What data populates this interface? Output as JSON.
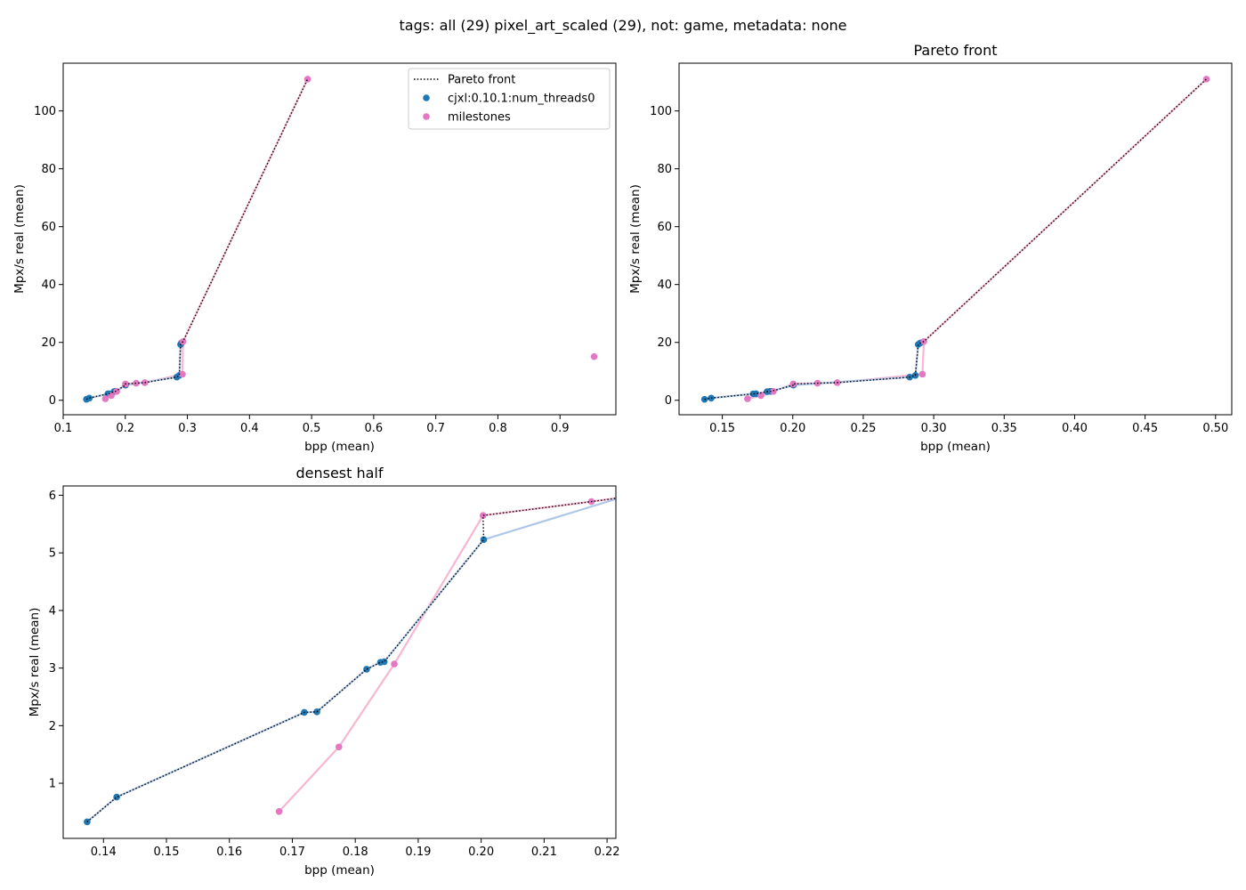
{
  "figure": {
    "suptitle": "tags: all (29) pixel_art_scaled (29), not: game, metadata: none"
  },
  "chart_data": [
    {
      "id": "overview",
      "type": "scatter",
      "title": "",
      "xlabel": "bpp (mean)",
      "ylabel": "Mpx/s real (mean)",
      "xlim": [
        0.1,
        0.99
      ],
      "ylim": [
        -5,
        116.5
      ],
      "xticks": [
        0.1,
        0.2,
        0.3,
        0.4,
        0.5,
        0.6,
        0.7,
        0.8,
        0.9
      ],
      "xtick_labels": [
        "0.1",
        "0.2",
        "0.3",
        "0.4",
        "0.5",
        "0.6",
        "0.7",
        "0.8",
        "0.9"
      ],
      "yticks": [
        0,
        20,
        40,
        60,
        80,
        100
      ],
      "ytick_labels": [
        "0",
        "20",
        "40",
        "60",
        "80",
        "100"
      ],
      "show_legend": true,
      "legend_position": "upper right",
      "show_points": [
        "cjxl",
        "milestones"
      ]
    },
    {
      "id": "pareto",
      "type": "scatter",
      "title": "Pareto front",
      "xlabel": "bpp (mean)",
      "ylabel": "Mpx/s real (mean)",
      "xlim": [
        0.1193,
        0.5115
      ],
      "ylim": [
        -5,
        116.5
      ],
      "xticks": [
        0.15,
        0.2,
        0.25,
        0.3,
        0.35,
        0.4,
        0.45,
        0.5
      ],
      "xtick_labels": [
        "0.15",
        "0.20",
        "0.25",
        "0.30",
        "0.35",
        "0.40",
        "0.45",
        "0.50"
      ],
      "yticks": [
        0,
        20,
        40,
        60,
        80,
        100
      ],
      "ytick_labels": [
        "0",
        "20",
        "40",
        "60",
        "80",
        "100"
      ],
      "show_legend": false,
      "show_points": [
        "cjxl",
        "milestones_pareto"
      ]
    },
    {
      "id": "densest",
      "type": "scatter",
      "title": "densest half",
      "xlabel": "bpp (mean)",
      "ylabel": "Mpx/s real (mean)",
      "xlim": [
        0.1336,
        0.2214
      ],
      "ylim": [
        0.043,
        6.162
      ],
      "xticks": [
        0.14,
        0.15,
        0.16,
        0.17,
        0.18,
        0.19,
        0.2,
        0.21,
        0.22
      ],
      "xtick_labels": [
        "0.14",
        "0.15",
        "0.16",
        "0.17",
        "0.18",
        "0.19",
        "0.20",
        "0.21",
        "0.22"
      ],
      "yticks": [
        1,
        2,
        3,
        4,
        5,
        6
      ],
      "ytick_labels": [
        "1",
        "2",
        "3",
        "4",
        "5",
        "6"
      ],
      "show_legend": false,
      "show_points": [
        "cjxl",
        "milestones_dense"
      ]
    }
  ],
  "series": {
    "cjxl": {
      "name": "cjxl:0.10.1:num_threads0",
      "color": "#1f77b4",
      "line_color": "#aec7e8",
      "points": [
        [
          0.1374,
          0.33
        ],
        [
          0.1421,
          0.76
        ],
        [
          0.1719,
          2.23
        ],
        [
          0.1739,
          2.24
        ],
        [
          0.1818,
          2.98
        ],
        [
          0.184,
          3.1
        ],
        [
          0.1846,
          3.11
        ],
        [
          0.2004,
          5.23
        ],
        [
          0.283,
          8.0
        ],
        [
          0.287,
          8.6
        ],
        [
          0.289,
          19.3
        ],
        [
          0.2905,
          19.8
        ]
      ]
    },
    "milestones": {
      "name": "milestones",
      "color": "#e377c2",
      "line_color": "#f7b6d2",
      "points": [
        [
          0.1679,
          0.51
        ],
        [
          0.1774,
          1.63
        ],
        [
          0.1862,
          3.07
        ],
        [
          0.2003,
          5.65
        ],
        [
          0.2175,
          5.89
        ],
        [
          0.2315,
          6.1
        ],
        [
          0.292,
          9.0
        ],
        [
          0.293,
          20.3
        ],
        [
          0.4935,
          111.0
        ],
        [
          0.955,
          15.1
        ]
      ]
    },
    "pareto_front": {
      "name": "Pareto front",
      "color": "#000000",
      "points": [
        [
          0.1374,
          0.33
        ],
        [
          0.1421,
          0.76
        ],
        [
          0.1719,
          2.23
        ],
        [
          0.1739,
          2.24
        ],
        [
          0.1818,
          2.98
        ],
        [
          0.184,
          3.1
        ],
        [
          0.1846,
          3.11
        ],
        [
          0.2004,
          5.23
        ],
        [
          0.2003,
          5.65
        ],
        [
          0.2175,
          5.89
        ],
        [
          0.2315,
          6.1
        ],
        [
          0.283,
          8.0
        ],
        [
          0.287,
          8.6
        ],
        [
          0.289,
          19.3
        ],
        [
          0.2905,
          19.8
        ],
        [
          0.293,
          20.3
        ],
        [
          0.4935,
          111.0
        ]
      ]
    }
  }
}
